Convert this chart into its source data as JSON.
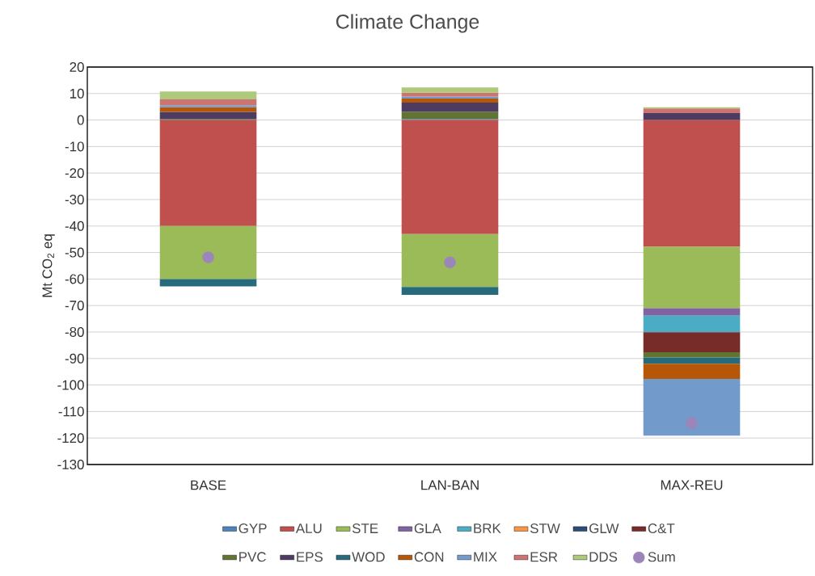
{
  "chart_data": {
    "type": "bar",
    "title": "Climate Change",
    "ylabel": "Mt CO$_{2}$ eq",
    "categories": [
      "BASE",
      "LAN-BAN",
      "MAX-REU"
    ],
    "stacked": true,
    "grid": "y",
    "legend": "bottom",
    "ylim": [
      -130,
      20
    ],
    "yticks": [
      -130,
      -120,
      -110,
      -100,
      -90,
      -80,
      -70,
      -60,
      -50,
      -40,
      -30,
      -20,
      -10,
      0,
      10,
      20
    ],
    "series": [
      {
        "name": "GYP",
        "color": "#4f81bd",
        "values": [
          null,
          0.4,
          null
        ]
      },
      {
        "name": "ALU",
        "color": "#c0504d",
        "values": [
          -40,
          -43,
          -47.8
        ]
      },
      {
        "name": "STE",
        "color": "#9bbb59",
        "values": [
          -20,
          -20,
          -23.2
        ]
      },
      {
        "name": "GLA",
        "color": "#8064a2",
        "values": [
          null,
          null,
          -2.8
        ]
      },
      {
        "name": "BRK",
        "color": "#4bacc6",
        "values": [
          null,
          null,
          -6.3
        ]
      },
      {
        "name": "STW",
        "color": "#f79646",
        "values": [
          null,
          null,
          null
        ]
      },
      {
        "name": "GLW",
        "color": "#2c4d75",
        "values": [
          null,
          null,
          null
        ]
      },
      {
        "name": "C&T",
        "color": "#772c2a",
        "values": [
          null,
          null,
          -7.5
        ]
      },
      {
        "name": "PVC",
        "color": "#5f7530",
        "values": [
          0.3,
          2.7,
          -2.0
        ]
      },
      {
        "name": "EPS",
        "color": "#4d3b62",
        "values": [
          2.8,
          3.5,
          2.6
        ]
      },
      {
        "name": "WOD",
        "color": "#276a7c",
        "values": [
          -2.8,
          -3,
          -2.4
        ]
      },
      {
        "name": "CON",
        "color": "#b65708",
        "values": [
          1.7,
          1.5,
          -5.7
        ]
      },
      {
        "name": "MIX",
        "color": "#729aca",
        "values": [
          0.8,
          0.8,
          -21.4
        ]
      },
      {
        "name": "ESR",
        "color": "#cd7371",
        "values": [
          2.2,
          1.4,
          1.8
        ]
      },
      {
        "name": "DDS",
        "color": "#afc97a",
        "values": [
          3.0,
          2.0,
          0.4
        ]
      },
      {
        "name": "Sum",
        "type": "scatter",
        "marker": "circle",
        "color": "#9c85b8",
        "values": [
          -51.8,
          -53.7,
          -114.3
        ]
      }
    ]
  }
}
